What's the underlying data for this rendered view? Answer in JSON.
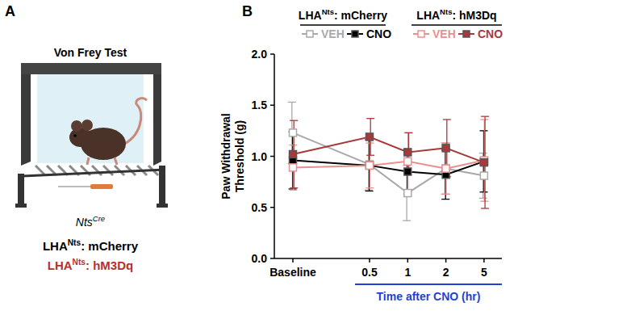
{
  "panel_labels": [
    "A",
    "B"
  ],
  "panel_a": {
    "title": "Von Frey Test",
    "genotype": {
      "base": "Nts",
      "sup": "Cre"
    },
    "groups": [
      {
        "base": "LHA",
        "sup": "Nts",
        "rest": ": mCherry",
        "color": "#000000"
      },
      {
        "base": "LHA",
        "sup": "Nts",
        "rest": ": hM3Dq",
        "color": "#b5302f"
      }
    ]
  },
  "chart_data": {
    "type": "line",
    "categories": [
      "Baseline",
      "0.5",
      "1",
      "2",
      "5"
    ],
    "ylabel": [
      "Paw Withdrawal",
      "Threshold (g)"
    ],
    "annotation": "Time after CNO (hr)",
    "ylim": [
      0,
      2
    ],
    "yticks": [
      {
        "value": 0,
        "label": "0.0"
      },
      0.5,
      {
        "value": 1,
        "label": "1.0"
      },
      1.5,
      {
        "value": 2,
        "label": "2.0"
      }
    ],
    "grid": false,
    "legend_groups": [
      {
        "base": "LHA",
        "sup": "Nts",
        "rest": ": mCherry"
      },
      {
        "base": "LHA",
        "sup": "Nts",
        "rest": ": hM3Dq"
      }
    ],
    "series": [
      {
        "name": "VEH",
        "color": "#a9a9a9",
        "marker": "open-square",
        "values": [
          1.23,
          0.92,
          0.64,
          0.88,
          0.81
        ],
        "errors": [
          0.3,
          0.25,
          0.27,
          0.25,
          0.22
        ]
      },
      {
        "name": "CNO",
        "color": "#000000",
        "marker": "square",
        "values": [
          0.96,
          0.91,
          0.85,
          0.82,
          0.95
        ],
        "errors": [
          0.28,
          0.25,
          0.22,
          0.24,
          0.3
        ]
      },
      {
        "name": "VEH",
        "color": "#e8908f",
        "marker": "open-square",
        "values": [
          0.89,
          0.91,
          0.95,
          0.88,
          0.96
        ],
        "errors": [
          0.22,
          0.22,
          0.28,
          0.25,
          0.4
        ]
      },
      {
        "name": "CNO",
        "color": "#a8393a",
        "marker": "square",
        "values": [
          1.02,
          1.19,
          1.04,
          1.08,
          0.94
        ],
        "errors": [
          0.33,
          0.18,
          0.19,
          0.28,
          0.45
        ]
      }
    ]
  }
}
